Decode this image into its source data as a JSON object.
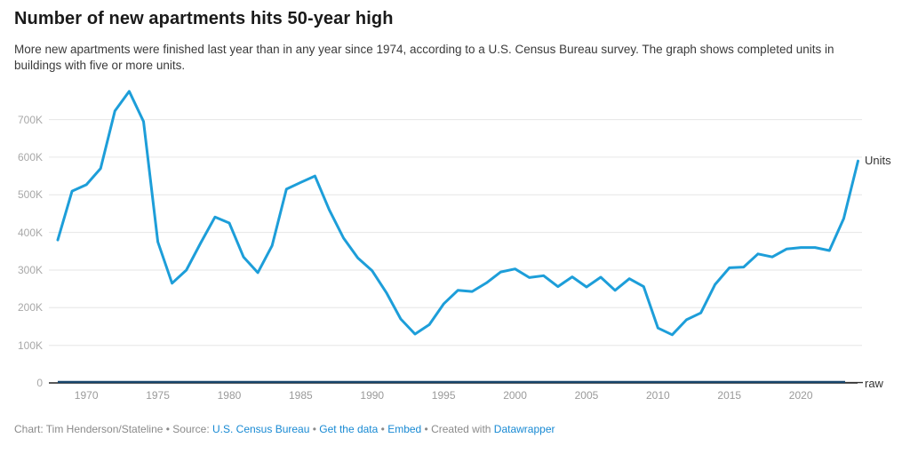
{
  "header": {
    "title": "Number of new apartments hits 50-year high",
    "subtitle": "More new apartments were finished last year than in any year since 1974, according to a U.S. Census Bureau survey. The graph shows completed units in buildings with five or more units."
  },
  "chart_data": {
    "type": "line",
    "title": "Number of new apartments hits 50-year high",
    "xlabel": "",
    "ylabel": "",
    "x": [
      1968,
      1969,
      1970,
      1971,
      1972,
      1973,
      1974,
      1975,
      1976,
      1977,
      1978,
      1979,
      1980,
      1981,
      1982,
      1983,
      1984,
      1985,
      1986,
      1987,
      1988,
      1989,
      1990,
      1991,
      1992,
      1993,
      1994,
      1995,
      1996,
      1997,
      1998,
      1999,
      2000,
      2001,
      2002,
      2003,
      2004,
      2005,
      2006,
      2007,
      2008,
      2009,
      2010,
      2011,
      2012,
      2013,
      2014,
      2015,
      2016,
      2017,
      2018,
      2019,
      2020,
      2021,
      2022,
      2023,
      2024
    ],
    "values_unit": "thousands of units (axis shows K)",
    "series": [
      {
        "name": "Units",
        "color": "#1d9ed9",
        "values": [
          380,
          510,
          527,
          570,
          723,
          775,
          695,
          375,
          265,
          300,
          372,
          441,
          425,
          335,
          293,
          365,
          515,
          533,
          550,
          460,
          385,
          332,
          298,
          240,
          170,
          130,
          155,
          210,
          246,
          243,
          266,
          295,
          303,
          280,
          285,
          256,
          282,
          255,
          281,
          246,
          277,
          256,
          146,
          128,
          168,
          186,
          262,
          306,
          308,
          343,
          335,
          356,
          360,
          360,
          352,
          437,
          590
        ]
      },
      {
        "name": "raw",
        "color": "#17456b",
        "values": [
          0,
          0,
          0,
          0,
          0,
          0,
          0,
          0,
          0,
          0,
          0,
          0,
          0,
          0,
          0,
          0,
          0,
          0,
          0,
          0,
          0,
          0,
          0,
          0,
          0,
          0,
          0,
          0,
          0,
          0,
          0,
          0,
          0,
          0,
          0,
          0,
          0,
          0,
          0,
          0,
          0,
          0,
          0,
          0,
          0,
          0,
          0,
          0,
          0,
          0,
          0,
          0,
          0,
          0,
          0,
          0,
          0
        ]
      }
    ],
    "ylim": [
      0,
      780
    ],
    "xlim": [
      1968,
      2024
    ],
    "y_ticks": [
      {
        "value": 0,
        "label": "0"
      },
      {
        "value": 100,
        "label": "100K"
      },
      {
        "value": 200,
        "label": "200K"
      },
      {
        "value": 300,
        "label": "300K"
      },
      {
        "value": 400,
        "label": "400K"
      },
      {
        "value": 500,
        "label": "500K"
      },
      {
        "value": 600,
        "label": "600K"
      },
      {
        "value": 700,
        "label": "700K"
      }
    ],
    "x_ticks": [
      {
        "value": 1970,
        "label": "1970"
      },
      {
        "value": 1975,
        "label": "1975"
      },
      {
        "value": 1980,
        "label": "1980"
      },
      {
        "value": 1985,
        "label": "1985"
      },
      {
        "value": 1990,
        "label": "1990"
      },
      {
        "value": 1995,
        "label": "1995"
      },
      {
        "value": 2000,
        "label": "2000"
      },
      {
        "value": 2005,
        "label": "2005"
      },
      {
        "value": 2010,
        "label": "2010"
      },
      {
        "value": 2015,
        "label": "2015"
      },
      {
        "value": 2020,
        "label": "2020"
      }
    ],
    "grid": true,
    "legend": "series name labels at right end of each line",
    "colors": {
      "grid": "#e6e6e6",
      "zero_axis": "#222222",
      "y_tick_text": "#a8a8a8",
      "x_tick_text": "#9a9a9a",
      "series_label_text": "#333333"
    }
  },
  "footer": {
    "parts": [
      {
        "name": "footer-byline",
        "text": "Chart: Tim Henderson/Stateline",
        "link": false
      },
      {
        "name": "footer-separator",
        "text": " • ",
        "link": false
      },
      {
        "name": "footer-source-label",
        "text": "Source: ",
        "link": false
      },
      {
        "name": "footer-link-census",
        "text": "U.S. Census Bureau",
        "link": true
      },
      {
        "name": "footer-separator",
        "text": " • ",
        "link": false
      },
      {
        "name": "footer-link-get-data",
        "text": "Get the data",
        "link": true
      },
      {
        "name": "footer-separator",
        "text": " • ",
        "link": false
      },
      {
        "name": "footer-link-embed",
        "text": "Embed",
        "link": true
      },
      {
        "name": "footer-separator",
        "text": "  • ",
        "link": false
      },
      {
        "name": "footer-created-with",
        "text": "Created with ",
        "link": false
      },
      {
        "name": "footer-link-datawrapper",
        "text": "Datawrapper",
        "link": true
      }
    ],
    "link_color": "#1789d3"
  }
}
